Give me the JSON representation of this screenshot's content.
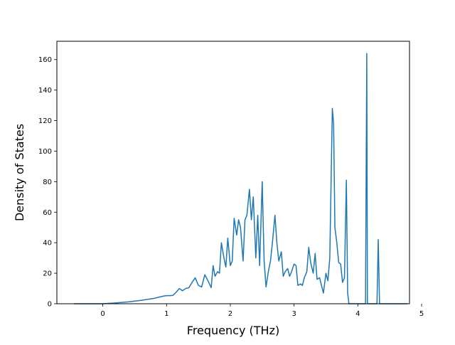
{
  "chart_data": {
    "type": "line",
    "title": "",
    "xlabel": "Frequency (THz)",
    "ylabel": "Density of States",
    "xlim": [
      -0.72,
      4.81
    ],
    "ylim": [
      0,
      172
    ],
    "xticks": [
      0,
      1,
      2,
      3,
      4,
      5
    ],
    "yticks": [
      0,
      20,
      40,
      60,
      80,
      100,
      120,
      140,
      160
    ],
    "grid": false,
    "legend": "none",
    "series": [
      {
        "color": "#1f77b4",
        "x": [
          -0.45,
          0.0,
          0.2,
          0.4,
          0.6,
          0.8,
          0.95,
          1.0,
          1.05,
          1.1,
          1.15,
          1.2,
          1.25,
          1.3,
          1.35,
          1.4,
          1.45,
          1.5,
          1.55,
          1.6,
          1.65,
          1.7,
          1.73,
          1.76,
          1.8,
          1.83,
          1.86,
          1.9,
          1.93,
          1.96,
          2.0,
          2.03,
          2.06,
          2.1,
          2.13,
          2.16,
          2.2,
          2.23,
          2.26,
          2.3,
          2.33,
          2.36,
          2.4,
          2.43,
          2.46,
          2.5,
          2.53,
          2.56,
          2.6,
          2.63,
          2.66,
          2.7,
          2.73,
          2.76,
          2.8,
          2.83,
          2.86,
          2.9,
          2.93,
          2.96,
          3.0,
          3.03,
          3.06,
          3.1,
          3.13,
          3.16,
          3.2,
          3.23,
          3.26,
          3.3,
          3.33,
          3.36,
          3.4,
          3.43,
          3.46,
          3.5,
          3.53,
          3.56,
          3.6,
          3.62,
          3.64,
          3.67,
          3.7,
          3.73,
          3.76,
          3.79,
          3.82,
          3.84,
          3.86,
          3.88,
          3.9,
          3.95,
          4.0,
          4.1,
          4.12,
          4.14,
          4.15,
          4.16,
          4.18,
          4.2,
          4.25,
          4.3,
          4.32,
          4.34,
          4.36,
          4.4,
          4.6,
          4.78
        ],
        "y": [
          0,
          0,
          0.5,
          1.2,
          2.2,
          3.5,
          5,
          5.3,
          5.3,
          5.5,
          7.5,
          10,
          8.5,
          10,
          10.5,
          14,
          17,
          12,
          11,
          19,
          15,
          10.5,
          25,
          18,
          21,
          20,
          40,
          30,
          24,
          43,
          25,
          28,
          56,
          45,
          55,
          50,
          28,
          55,
          58,
          75,
          55,
          70,
          30,
          58,
          25,
          80,
          28,
          11,
          22,
          28,
          40,
          58,
          40,
          28,
          34,
          18,
          21,
          23,
          18,
          21,
          26,
          25,
          12,
          13,
          12,
          17,
          21,
          37,
          27,
          20,
          33,
          16,
          17,
          12,
          7,
          20,
          15,
          30,
          128,
          118,
          50,
          40,
          27,
          26,
          14,
          17,
          81,
          7,
          0,
          0,
          0,
          0,
          0,
          0,
          0,
          164,
          0,
          0,
          0,
          0,
          0,
          0,
          42,
          0,
          0,
          0,
          0,
          0
        ]
      }
    ]
  }
}
